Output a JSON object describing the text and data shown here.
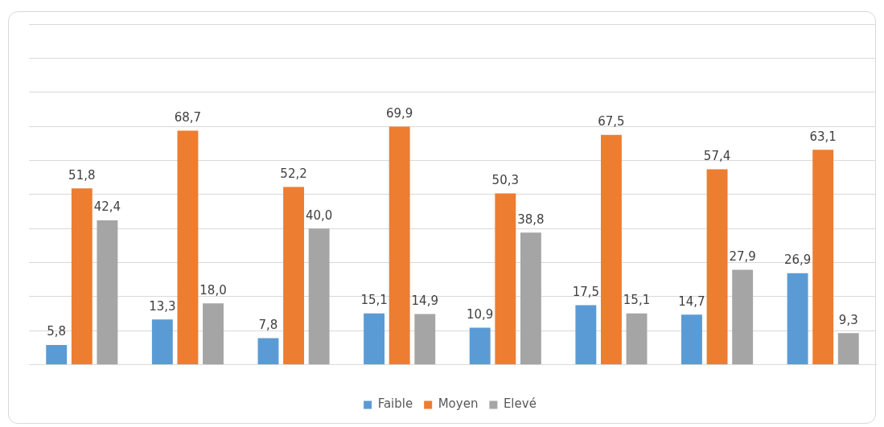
{
  "chart_data": {
    "type": "bar",
    "categories": [
      null,
      null,
      null,
      null,
      null,
      null,
      null,
      null
    ],
    "series": [
      {
        "name": "Faible",
        "color": "#5b9bd5",
        "values": [
          5.8,
          13.3,
          7.8,
          15.1,
          10.9,
          17.5,
          14.7,
          26.9
        ],
        "value_labels": [
          "5,8",
          "13,3",
          "7,8",
          "15,1",
          "10,9",
          "17,5",
          "14,7",
          "26,9"
        ]
      },
      {
        "name": "Moyen",
        "color": "#ed7d31",
        "values": [
          51.8,
          68.7,
          52.2,
          69.9,
          50.3,
          67.5,
          57.4,
          63.1
        ],
        "value_labels": [
          "51,8",
          "68,7",
          "52,2",
          "69,9",
          "50,3",
          "67,5",
          "57,4",
          "63,1"
        ]
      },
      {
        "name": "Elevé",
        "color": "#a5a5a5",
        "values": [
          42.4,
          18.0,
          40.0,
          14.9,
          38.8,
          15.1,
          27.9,
          9.3
        ],
        "value_labels": [
          "42,4",
          "18,0",
          "40,0",
          "14,9",
          "38,8",
          "15,1",
          "27,9",
          "9,3"
        ]
      }
    ],
    "ylim": [
      0,
      100
    ],
    "yticks": [
      {
        "value": 0,
        "label": null
      },
      {
        "value": 10,
        "label": null
      },
      {
        "value": 20,
        "label": null
      },
      {
        "value": 30,
        "label": null
      },
      {
        "value": 40,
        "label": null
      },
      {
        "value": 50,
        "label": null
      },
      {
        "value": 60,
        "label": null
      },
      {
        "value": 70,
        "label": null
      },
      {
        "value": 80,
        "label": null
      },
      {
        "value": 90,
        "label": null
      },
      {
        "value": 100,
        "label": null
      }
    ],
    "grid": "y",
    "legend": "bottom"
  }
}
